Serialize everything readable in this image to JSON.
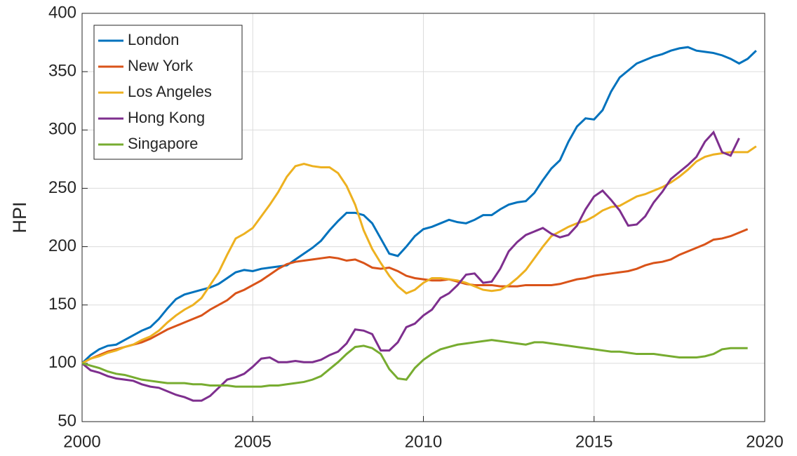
{
  "chart_data": {
    "type": "line",
    "ylabel": "HPI",
    "x": [
      2000,
      2000.25,
      2000.5,
      2000.75,
      2001,
      2001.25,
      2001.5,
      2001.75,
      2002,
      2002.25,
      2002.5,
      2002.75,
      2003,
      2003.25,
      2003.5,
      2003.75,
      2004,
      2004.25,
      2004.5,
      2004.75,
      2005,
      2005.25,
      2005.5,
      2005.75,
      2006,
      2006.25,
      2006.5,
      2006.75,
      2007,
      2007.25,
      2007.5,
      2007.75,
      2008,
      2008.25,
      2008.5,
      2008.75,
      2009,
      2009.25,
      2009.5,
      2009.75,
      2010,
      2010.25,
      2010.5,
      2010.75,
      2011,
      2011.25,
      2011.5,
      2011.75,
      2012,
      2012.25,
      2012.5,
      2012.75,
      2013,
      2013.25,
      2013.5,
      2013.75,
      2014,
      2014.25,
      2014.5,
      2014.75,
      2015,
      2015.25,
      2015.5,
      2015.75,
      2016,
      2016.25,
      2016.5,
      2016.75,
      2017,
      2017.25,
      2017.5,
      2017.75,
      2018,
      2018.25,
      2018.5,
      2018.75,
      2019,
      2019.25,
      2019.5,
      2019.75
    ],
    "series": [
      {
        "name": "London",
        "color": "#0072bd",
        "values": [
          100,
          107,
          112,
          115,
          116,
          120,
          124,
          128,
          131,
          138,
          147,
          155,
          159,
          161,
          163,
          165,
          168,
          173,
          178,
          180,
          179,
          181,
          182,
          183,
          184,
          189,
          194,
          199,
          205,
          214,
          222,
          229,
          229,
          227,
          220,
          207,
          194,
          192,
          200,
          209,
          215,
          217,
          220,
          223,
          221,
          220,
          223,
          227,
          227,
          232,
          236,
          238,
          239,
          246,
          257,
          267,
          274,
          290,
          303,
          310,
          309,
          317,
          333,
          345,
          351,
          357,
          360,
          363,
          365,
          368,
          370,
          371,
          368,
          367,
          366,
          364,
          361,
          357,
          361,
          368
        ]
      },
      {
        "name": "New York",
        "color": "#d95319",
        "values": [
          100,
          104,
          107,
          110,
          112,
          114,
          116,
          118,
          121,
          125,
          129,
          132,
          135,
          138,
          141,
          146,
          150,
          154,
          160,
          163,
          167,
          171,
          176,
          181,
          185,
          187,
          188,
          189,
          190,
          191,
          190,
          188,
          189,
          186,
          182,
          181,
          182,
          179,
          175,
          173,
          172,
          171,
          171,
          172,
          170,
          168,
          167,
          167,
          167,
          166,
          166,
          166,
          167,
          167,
          167,
          167,
          168,
          170,
          172,
          173,
          175,
          176,
          177,
          178,
          179,
          181,
          184,
          186,
          187,
          189,
          193,
          196,
          199,
          202,
          206,
          207,
          209,
          212,
          215,
          null
        ]
      },
      {
        "name": "Los Angeles",
        "color": "#edb120",
        "values": [
          100,
          104,
          106,
          109,
          111,
          114,
          116,
          120,
          123,
          128,
          135,
          141,
          146,
          150,
          156,
          167,
          178,
          193,
          207,
          211,
          216,
          226,
          236,
          247,
          260,
          269,
          271,
          269,
          268,
          268,
          263,
          252,
          236,
          214,
          198,
          186,
          175,
          166,
          160,
          163,
          169,
          173,
          173,
          172,
          171,
          169,
          166,
          163,
          162,
          163,
          167,
          173,
          180,
          190,
          200,
          209,
          213,
          217,
          220,
          222,
          226,
          231,
          234,
          235,
          239,
          243,
          245,
          248,
          251,
          255,
          260,
          266,
          273,
          277,
          279,
          280,
          281,
          281,
          281,
          286
        ]
      },
      {
        "name": "Hong Kong",
        "color": "#7e2f8e",
        "values": [
          100,
          94,
          92,
          89,
          87,
          86,
          85,
          82,
          80,
          79,
          76,
          73,
          71,
          68,
          68,
          72,
          79,
          86,
          88,
          91,
          97,
          104,
          105,
          101,
          101,
          102,
          101,
          101,
          103,
          107,
          110,
          117,
          129,
          128,
          125,
          111,
          111,
          118,
          131,
          134,
          141,
          146,
          156,
          160,
          167,
          176,
          177,
          169,
          170,
          181,
          196,
          204,
          210,
          213,
          216,
          211,
          208,
          210,
          218,
          232,
          243,
          248,
          240,
          231,
          218,
          219,
          226,
          238,
          247,
          258,
          264,
          270,
          277,
          290,
          298,
          281,
          278,
          293,
          null,
          null
        ]
      },
      {
        "name": "Singapore",
        "color": "#77ac30",
        "values": [
          100,
          98,
          96,
          93,
          91,
          90,
          88,
          86,
          85,
          84,
          83,
          83,
          83,
          82,
          82,
          81,
          81,
          81,
          80,
          80,
          80,
          80,
          81,
          81,
          82,
          83,
          84,
          86,
          89,
          95,
          101,
          108,
          114,
          115,
          113,
          108,
          95,
          87,
          86,
          96,
          103,
          108,
          112,
          114,
          116,
          117,
          118,
          119,
          120,
          119,
          118,
          117,
          116,
          118,
          118,
          117,
          116,
          115,
          114,
          113,
          112,
          111,
          110,
          110,
          109,
          108,
          108,
          108,
          107,
          106,
          105,
          105,
          105,
          106,
          108,
          112,
          113,
          113,
          113,
          null
        ]
      }
    ],
    "xlim": [
      2000,
      2020
    ],
    "xticks": [
      2000,
      2005,
      2010,
      2015,
      2020
    ],
    "ylim": [
      50,
      400
    ],
    "yticks": [
      50,
      100,
      150,
      200,
      250,
      300,
      350,
      400
    ],
    "grid": true,
    "legend": "top-left"
  }
}
